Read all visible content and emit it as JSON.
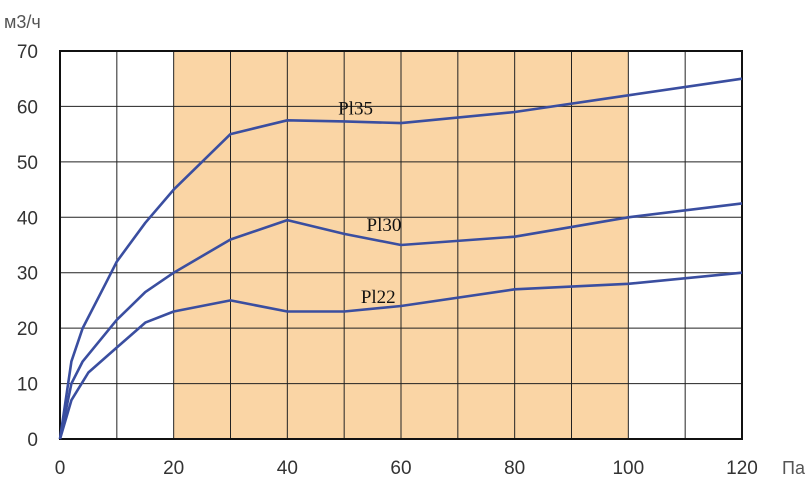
{
  "chart_data": {
    "type": "line",
    "y_unit": "м3/ч",
    "x_unit": "Па",
    "xlim": [
      0,
      120
    ],
    "ylim": [
      0,
      70
    ],
    "x_ticks": [
      "0",
      "20",
      "40",
      "60",
      "80",
      "100",
      "120"
    ],
    "y_ticks": [
      "0",
      "10",
      "20",
      "30",
      "40",
      "50",
      "60",
      "70"
    ],
    "grid": true,
    "x_grid_step": 10,
    "y_grid_step": 10,
    "shaded_region": {
      "x": [
        20,
        100
      ],
      "color": "#FAD5A5"
    },
    "line_color": "#3A4EA0",
    "series": [
      {
        "name": "Pl35",
        "points": [
          [
            0,
            0
          ],
          [
            2,
            14
          ],
          [
            4,
            20
          ],
          [
            8,
            28
          ],
          [
            10,
            32
          ],
          [
            15,
            39
          ],
          [
            20,
            45
          ],
          [
            30,
            55
          ],
          [
            40,
            57.5
          ],
          [
            50,
            57.3
          ],
          [
            60,
            57
          ],
          [
            80,
            59
          ],
          [
            100,
            62
          ],
          [
            120,
            65
          ]
        ]
      },
      {
        "name": "Pl30",
        "points": [
          [
            0,
            0
          ],
          [
            2,
            10
          ],
          [
            4,
            14
          ],
          [
            10,
            21.5
          ],
          [
            15,
            26.5
          ],
          [
            20,
            30
          ],
          [
            30,
            36
          ],
          [
            40,
            39.5
          ],
          [
            50,
            37
          ],
          [
            60,
            35
          ],
          [
            80,
            36.5
          ],
          [
            100,
            40
          ],
          [
            120,
            42.5
          ]
        ]
      },
      {
        "name": "Pl22",
        "points": [
          [
            0,
            0
          ],
          [
            2,
            7
          ],
          [
            5,
            12
          ],
          [
            10,
            16.5
          ],
          [
            15,
            21
          ],
          [
            20,
            23
          ],
          [
            30,
            25
          ],
          [
            40,
            23
          ],
          [
            50,
            23
          ],
          [
            60,
            24
          ],
          [
            80,
            27
          ],
          [
            100,
            28
          ],
          [
            120,
            30
          ]
        ]
      }
    ],
    "series_labels": [
      {
        "text": "Pl35",
        "x": 52,
        "y": 58.5
      },
      {
        "text": "Pl30",
        "x": 57,
        "y": 37.5
      },
      {
        "text": "Pl22",
        "x": 56,
        "y": 24.5
      }
    ]
  }
}
